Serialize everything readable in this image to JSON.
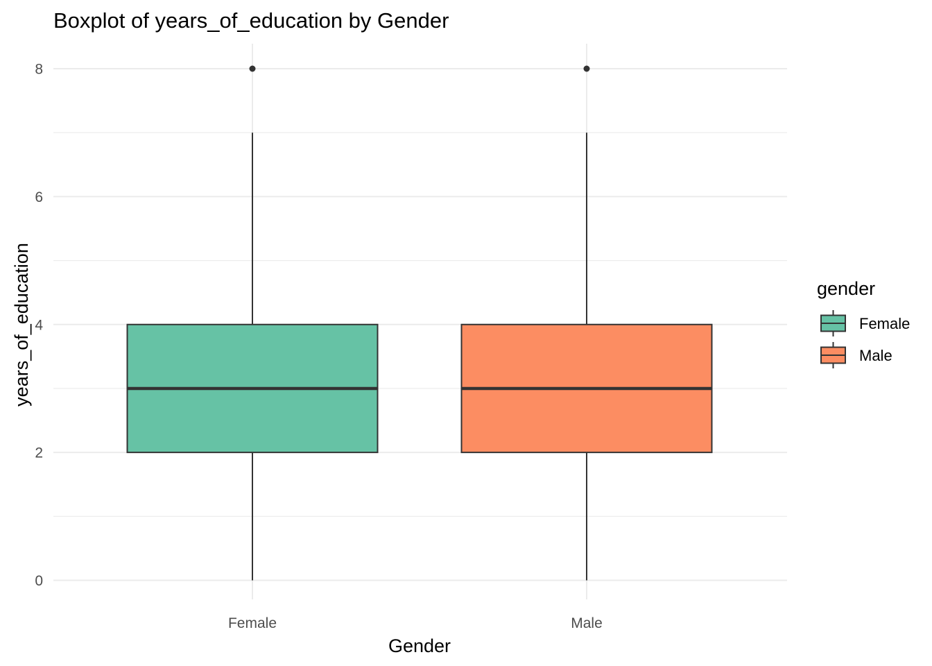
{
  "chart_data": {
    "type": "boxplot",
    "title": "Boxplot of years_of_education by Gender",
    "xlabel": "Gender",
    "ylabel": "years_of_education",
    "categories": [
      "Female",
      "Male"
    ],
    "ylim": [
      -0.3,
      8.3
    ],
    "yticks": [
      0,
      2,
      4,
      6,
      8
    ],
    "y_minor_gridlines": [
      1,
      3,
      5,
      7
    ],
    "grid": true,
    "legend": {
      "title": "gender",
      "position": "right",
      "entries": [
        "Female",
        "Male"
      ]
    },
    "boxes": [
      {
        "name": "Female",
        "lower_whisker": 0,
        "q1": 2,
        "median": 3,
        "q3": 4,
        "upper_whisker": 7,
        "outliers": [
          8
        ],
        "color": "#66c2a5"
      },
      {
        "name": "Male",
        "lower_whisker": 0,
        "q1": 2,
        "median": 3,
        "q3": 4,
        "upper_whisker": 7,
        "outliers": [
          8
        ],
        "color": "#fc8d62"
      }
    ],
    "colors": {
      "grid": "#ebebeb",
      "box_line": "#333333",
      "tick_text": "#4d4d4d"
    }
  }
}
